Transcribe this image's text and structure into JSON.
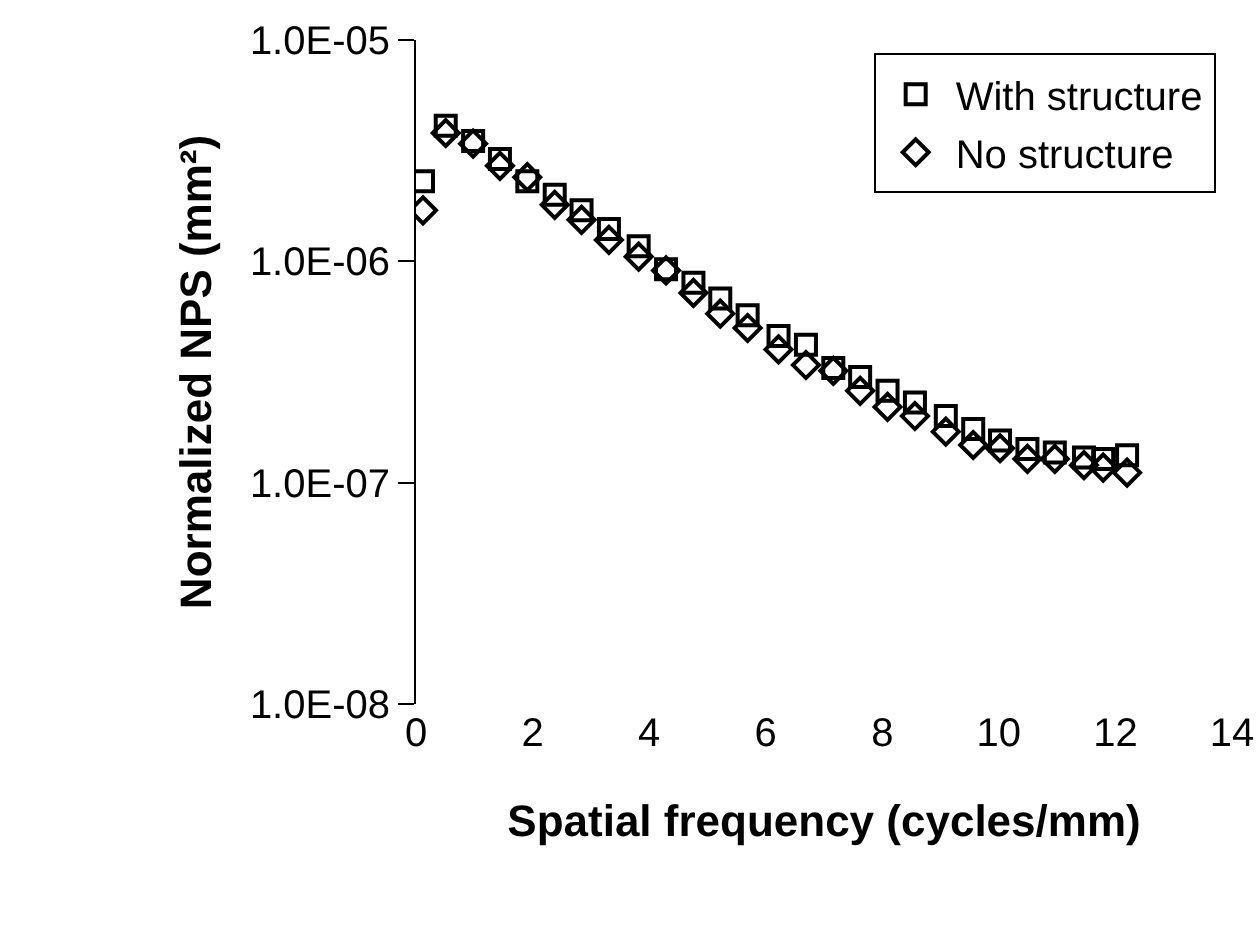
{
  "chart_data": {
    "type": "scatter",
    "xlabel": "Spatial frequency (cycles/mm)",
    "ylabel": "Normalized NPS (mm²)",
    "log": "y",
    "grid": false,
    "legend": "top right",
    "xlim": [
      0,
      14
    ],
    "xticks": [
      0,
      2,
      4,
      6,
      8,
      10,
      12,
      14
    ],
    "ylim": [
      1e-08,
      1e-05
    ],
    "yticks": [
      {
        "value": 1e-08,
        "label": "1.0E-08"
      },
      {
        "value": 1e-07,
        "label": "1.0E-07"
      },
      {
        "value": 1e-06,
        "label": "1.0E-06"
      },
      {
        "value": 1e-05,
        "label": "1.0E-05"
      }
    ],
    "x": [
      0.12,
      0.51,
      0.98,
      1.44,
      1.91,
      2.38,
      2.84,
      3.31,
      3.82,
      4.29,
      4.76,
      5.22,
      5.69,
      6.22,
      6.69,
      7.16,
      7.62,
      8.09,
      8.56,
      9.09,
      9.56,
      10.02,
      10.49,
      10.96,
      11.46,
      11.79,
      12.2
    ],
    "series": [
      {
        "name": "With structure",
        "color": "#000000",
        "marker": "square",
        "values": [
          2.3e-06,
          4.1e-06,
          3.5e-06,
          2.9e-06,
          2.3e-06,
          2e-06,
          1.7e-06,
          1.4e-06,
          1.17e-06,
          9.2e-07,
          8e-07,
          6.8e-07,
          5.7e-07,
          4.6e-07,
          4.2e-07,
          3.3e-07,
          3e-07,
          2.6e-07,
          2.3e-07,
          2e-07,
          1.75e-07,
          1.55e-07,
          1.42e-07,
          1.37e-07,
          1.3e-07,
          1.28e-07,
          1.33e-07
        ]
      },
      {
        "name": "No structure",
        "color": "#000000",
        "marker": "diamond",
        "values": [
          1.7e-06,
          3.8e-06,
          3.4e-06,
          2.7e-06,
          2.4e-06,
          1.8e-06,
          1.54e-06,
          1.25e-06,
          1.05e-06,
          9.1e-07,
          7.2e-07,
          5.8e-07,
          5e-07,
          4e-07,
          3.4e-07,
          3.2e-07,
          2.6e-07,
          2.2e-07,
          2e-07,
          1.7e-07,
          1.48e-07,
          1.43e-07,
          1.28e-07,
          1.28e-07,
          1.2e-07,
          1.17e-07,
          1.11e-07
        ]
      }
    ]
  }
}
